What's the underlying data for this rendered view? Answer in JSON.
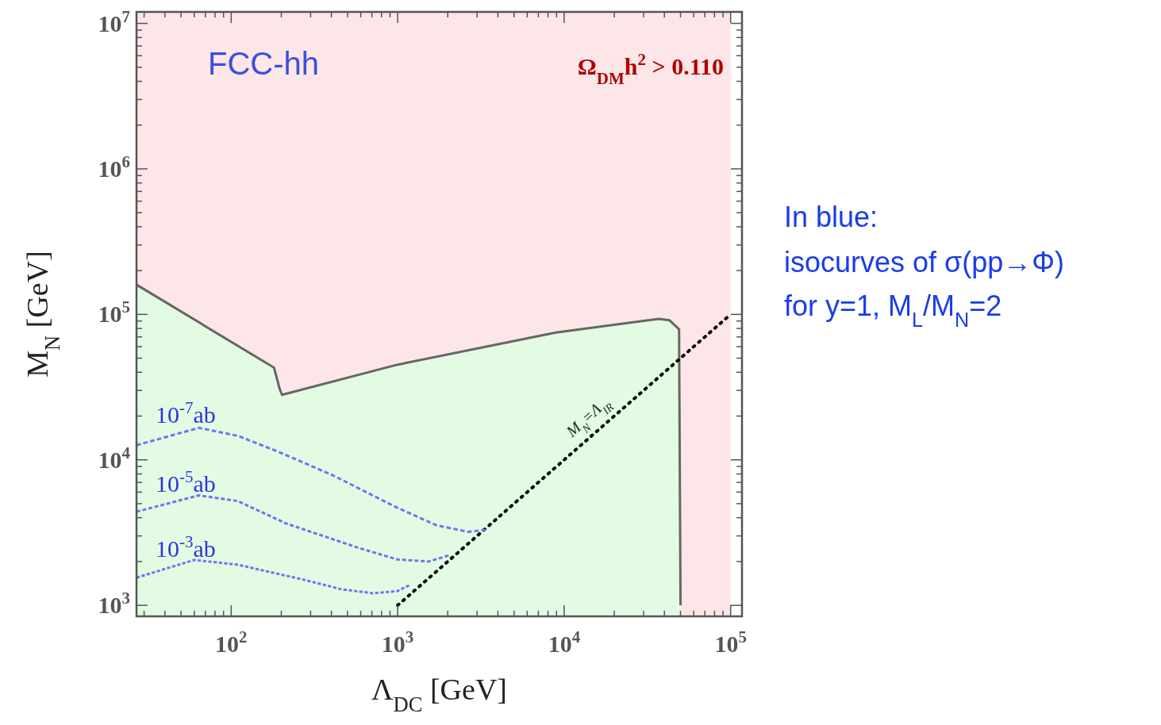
{
  "chart_data": {
    "type": "line",
    "xlabel": "Λ$_{DC}$ [GeV]",
    "ylabel": "M$_{N}$ [GeV]",
    "log": "xy",
    "xlim": [
      27,
      117000
    ],
    "ylim": [
      840,
      12000000
    ],
    "xticks": [
      {
        "value": 30,
        "label": null
      },
      {
        "value": 40,
        "label": null
      },
      {
        "value": 50,
        "label": null
      },
      {
        "value": 60,
        "label": null
      },
      {
        "value": 70,
        "label": null
      },
      {
        "value": 80,
        "label": null
      },
      {
        "value": 90,
        "label": null
      },
      {
        "value": 100,
        "label": "10$^{2}$"
      },
      {
        "value": 200,
        "label": null
      },
      {
        "value": 300,
        "label": null
      },
      {
        "value": 400,
        "label": null
      },
      {
        "value": 500,
        "label": null
      },
      {
        "value": 600,
        "label": null
      },
      {
        "value": 700,
        "label": null
      },
      {
        "value": 800,
        "label": null
      },
      {
        "value": 900,
        "label": null
      },
      {
        "value": 1000,
        "label": "10$^{3}$"
      },
      {
        "value": 2000,
        "label": null
      },
      {
        "value": 3000,
        "label": null
      },
      {
        "value": 4000,
        "label": null
      },
      {
        "value": 5000,
        "label": null
      },
      {
        "value": 6000,
        "label": null
      },
      {
        "value": 7000,
        "label": null
      },
      {
        "value": 8000,
        "label": null
      },
      {
        "value": 9000,
        "label": null
      },
      {
        "value": 10000,
        "label": "10$^{4}$"
      },
      {
        "value": 20000,
        "label": null
      },
      {
        "value": 30000,
        "label": null
      },
      {
        "value": 40000,
        "label": null
      },
      {
        "value": 50000,
        "label": null
      },
      {
        "value": 60000,
        "label": null
      },
      {
        "value": 70000,
        "label": null
      },
      {
        "value": 80000,
        "label": null
      },
      {
        "value": 90000,
        "label": null
      },
      {
        "value": 100000,
        "label": "10$^{5}$"
      }
    ],
    "yticks": [
      {
        "value": 1000,
        "label": "10$^{3}$"
      },
      {
        "value": 2000,
        "label": null
      },
      {
        "value": 3000,
        "label": null
      },
      {
        "value": 4000,
        "label": null
      },
      {
        "value": 5000,
        "label": null
      },
      {
        "value": 6000,
        "label": null
      },
      {
        "value": 7000,
        "label": null
      },
      {
        "value": 8000,
        "label": null
      },
      {
        "value": 9000,
        "label": null
      },
      {
        "value": 10000,
        "label": "10$^{4}$"
      },
      {
        "value": 20000,
        "label": null
      },
      {
        "value": 30000,
        "label": null
      },
      {
        "value": 40000,
        "label": null
      },
      {
        "value": 50000,
        "label": null
      },
      {
        "value": 60000,
        "label": null
      },
      {
        "value": 70000,
        "label": null
      },
      {
        "value": 80000,
        "label": null
      },
      {
        "value": 90000,
        "label": null
      },
      {
        "value": 100000,
        "label": "10$^{5}$"
      },
      {
        "value": 200000,
        "label": null
      },
      {
        "value": 300000,
        "label": null
      },
      {
        "value": 400000,
        "label": null
      },
      {
        "value": 500000,
        "label": null
      },
      {
        "value": 600000,
        "label": null
      },
      {
        "value": 700000,
        "label": null
      },
      {
        "value": 800000,
        "label": null
      },
      {
        "value": 900000,
        "label": null
      },
      {
        "value": 1000000,
        "label": "10$^{6}$"
      },
      {
        "value": 2000000,
        "label": null
      },
      {
        "value": 3000000,
        "label": null
      },
      {
        "value": 4000000,
        "label": null
      },
      {
        "value": 5000000,
        "label": null
      },
      {
        "value": 6000000,
        "label": null
      },
      {
        "value": 7000000,
        "label": null
      },
      {
        "value": 8000000,
        "label": null
      },
      {
        "value": 9000000,
        "label": null
      },
      {
        "value": 10000000,
        "label": "10$^{7}$"
      }
    ],
    "series": [
      {
        "type": "area",
        "color": "#e3fbe3",
        "x": [
          27,
          181,
          191,
          195,
          202,
          990,
          8900,
          37000,
          43000,
          49000,
          50000
        ],
        "values": [
          160000,
          43000,
          34000,
          31000,
          28000,
          45000,
          75000,
          93000,
          91000,
          79000,
          1000
        ]
      },
      {
        "color": "#000000",
        "line_style": "dotted",
        "x": [
          1000,
          100000
        ],
        "values": [
          1000,
          100000
        ]
      },
      {
        "color": "#6b78ee",
        "line_style": "dashed",
        "x": [
          27,
          64,
          110,
          191,
          411,
          990,
          1710,
          2650,
          3380
        ],
        "values": [
          12600,
          16600,
          14600,
          11400,
          7800,
          4700,
          3550,
          3200,
          3300
        ]
      },
      {
        "color": "#6b78ee",
        "line_style": "dashed",
        "x": [
          27,
          64,
          110,
          213,
          571,
          990,
          1535,
          2020
        ],
        "values": [
          4400,
          5700,
          5200,
          3660,
          2500,
          2070,
          2000,
          2200
        ]
      },
      {
        "color": "#6b78ee",
        "line_style": "dashed",
        "x": [
          27,
          60,
          110,
          266,
          459,
          711,
          990,
          1170
        ],
        "values": [
          1550,
          2050,
          1900,
          1510,
          1290,
          1210,
          1250,
          1370
        ]
      }
    ],
    "annotations": [
      "FCC-hh",
      "Ω$_{DM}$h$^{2}$ > 0.110",
      "In blue:",
      "isocurves of σ(pp→Φ)",
      "for y=1, M$_{L}$/M$_{N}$=2",
      "10$^{-7}$ab",
      "10$^{-5}$ab",
      "10$^{-3}$ab",
      "M$_{N}$=Λ$_{IR}$"
    ],
    "bands": [
      {
        "axis": "x",
        "from": 27,
        "to": 100000,
        "color": "#fde6e7"
      }
    ]
  }
}
